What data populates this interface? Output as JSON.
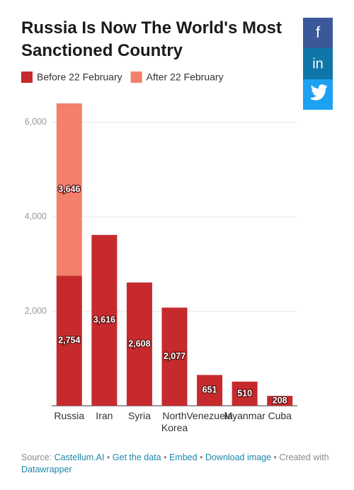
{
  "chart_data": {
    "type": "stacked-bar",
    "title": "Russia Is Now The World's Most Sanctioned Country",
    "categories": [
      "Russia",
      "Iran",
      "Syria",
      "North Korea",
      "Venezuela",
      "Myanmar",
      "Cuba"
    ],
    "series": [
      {
        "name": "Before 22 February",
        "color": "#c62a2d",
        "values": [
          2754,
          3616,
          2608,
          2077,
          651,
          510,
          208
        ],
        "value_labels": [
          "2,754",
          "3,616",
          "2,608",
          "2,077",
          "651",
          "510",
          "208"
        ]
      },
      {
        "name": "After 22 February",
        "color": "#f47f6b",
        "values": [
          3646,
          null,
          null,
          null,
          null,
          null,
          null
        ],
        "value_labels": [
          "3,646",
          null,
          null,
          null,
          null,
          null,
          null
        ]
      }
    ],
    "ylim": [
      0,
      6400
    ],
    "yticks": [
      {
        "value": 2000,
        "label": "2,000"
      },
      {
        "value": 4000,
        "label": "4,000"
      },
      {
        "value": 6000,
        "label": "6,000"
      }
    ],
    "grid": true
  },
  "footer": {
    "source_label": "Source:",
    "source": "Castellum.AI",
    "separator": "•",
    "links": [
      "Get the data",
      "Embed",
      "Download image"
    ],
    "created": "Created with",
    "tool": "Datawrapper"
  },
  "share_buttons": [
    "f",
    "in"
  ]
}
